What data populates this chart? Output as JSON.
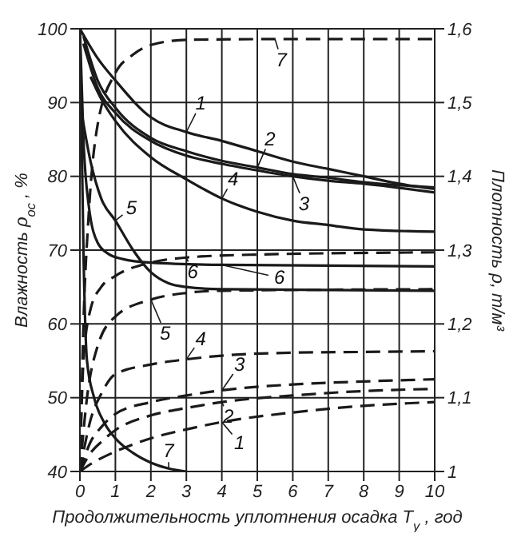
{
  "chart_data": {
    "type": "line",
    "xlabel": "Продолжительность уплотнения осадка T$_{у}$, год",
    "ylabel": "Влажность ρ$_{ос}$, %",
    "y2label": "Плотность ρ, т/м³",
    "xlim": [
      0,
      10
    ],
    "xticks": [
      0,
      1,
      2,
      3,
      4,
      5,
      6,
      7,
      8,
      9,
      10
    ],
    "ylim": [
      40,
      100
    ],
    "yticks": [
      40,
      50,
      60,
      70,
      80,
      90,
      100
    ],
    "y2lim": [
      1.0,
      1.6
    ],
    "y2ticks": [
      {
        "value": 1.0,
        "label": "1"
      },
      {
        "value": 1.1,
        "label": "1,1"
      },
      {
        "value": 1.2,
        "label": "1,2"
      },
      {
        "value": 1.3,
        "label": "1,3"
      },
      {
        "value": 1.4,
        "label": "1,4"
      },
      {
        "value": 1.5,
        "label": "1,5"
      },
      {
        "value": 1.6,
        "label": "1,6"
      }
    ],
    "grid": true,
    "marker": "none",
    "series": [
      {
        "color": "#1a1a1a",
        "line_style": "solid",
        "x": [
          0,
          0.5,
          1,
          2,
          3,
          4,
          5,
          6,
          7,
          8,
          9,
          10
        ],
        "values": [
          100,
          96,
          93,
          88,
          86,
          84.8,
          83.4,
          82,
          81,
          80,
          79,
          78.3
        ]
      },
      {
        "color": "#1a1a1a",
        "line_style": "solid",
        "x": [
          0.1,
          0.5,
          1,
          2,
          3,
          4,
          5,
          6,
          7,
          8,
          10
        ],
        "values": [
          99,
          93,
          89.3,
          85.2,
          83.4,
          82.1,
          81.2,
          80.3,
          79.8,
          79.2,
          78.5
        ]
      },
      {
        "color": "#1a1a1a",
        "line_style": "solid",
        "x": [
          0.1,
          0.5,
          1,
          2,
          3,
          4,
          5,
          6,
          7,
          8,
          10
        ],
        "values": [
          98,
          92,
          88.6,
          84.8,
          82.8,
          81.7,
          80.8,
          80,
          79.4,
          79,
          77.8
        ]
      },
      {
        "color": "#1a1a1a",
        "line_style": "solid",
        "x": [
          0.3,
          0.6,
          1,
          2,
          3,
          4,
          5,
          6,
          7,
          8,
          10
        ],
        "values": [
          93.5,
          90.5,
          87.5,
          82.6,
          79.6,
          77,
          75.2,
          74,
          73.4,
          72.8,
          72.5
        ]
      },
      {
        "color": "#1a1a1a",
        "line_style": "solid",
        "x": [
          0,
          0.3,
          0.6,
          1,
          1.5,
          2,
          2.5,
          3,
          4,
          10
        ],
        "values": [
          90,
          82,
          77,
          74,
          70,
          67,
          65.5,
          65,
          64.7,
          64.5
        ]
      },
      {
        "color": "#1a1a1a",
        "line_style": "solid",
        "x": [
          0,
          0.1,
          0.25,
          0.5,
          0.8,
          1.2,
          2,
          4,
          10
        ],
        "values": [
          100,
          85,
          76,
          71,
          69.5,
          68.8,
          68.3,
          68,
          67.8
        ]
      },
      {
        "color": "#1a1a1a",
        "line_style": "solid",
        "x": [
          0,
          0.05,
          0.1,
          0.2,
          0.4,
          0.7,
          1,
          1.5,
          2,
          2.5,
          3
        ],
        "values": [
          100,
          85,
          70,
          55,
          50,
          46.5,
          44.5,
          42.5,
          41.2,
          40.4,
          40
        ]
      },
      {
        "color": "#1a1a1a",
        "line_style": "dashed",
        "axis": "y2",
        "x": [
          0,
          0.3,
          0.6,
          1,
          2,
          3,
          4,
          6,
          8,
          10
        ],
        "values": [
          1.0,
          1.01,
          1.018,
          1.027,
          1.045,
          1.057,
          1.067,
          1.08,
          1.089,
          1.094
        ]
      },
      {
        "color": "#1a1a1a",
        "line_style": "dashed",
        "axis": "y2",
        "x": [
          0,
          0.3,
          0.6,
          1,
          2,
          3,
          4,
          6,
          8,
          10
        ],
        "values": [
          1.0,
          1.025,
          1.04,
          1.056,
          1.076,
          1.086,
          1.094,
          1.103,
          1.109,
          1.112
        ]
      },
      {
        "color": "#1a1a1a",
        "line_style": "dashed",
        "axis": "y2",
        "x": [
          0,
          0.3,
          0.6,
          1,
          2,
          3,
          4,
          6,
          8,
          10
        ],
        "values": [
          1.0,
          1.04,
          1.06,
          1.078,
          1.094,
          1.103,
          1.11,
          1.118,
          1.122,
          1.125
        ]
      },
      {
        "color": "#1a1a1a",
        "line_style": "dashed",
        "axis": "y2",
        "x": [
          0,
          0.3,
          0.6,
          1,
          2,
          3,
          4,
          6,
          8,
          10
        ],
        "values": [
          1.0,
          1.07,
          1.105,
          1.132,
          1.145,
          1.152,
          1.157,
          1.161,
          1.162,
          1.163
        ]
      },
      {
        "color": "#1a1a1a",
        "line_style": "dashed",
        "axis": "y2",
        "x": [
          0,
          0.2,
          0.5,
          1,
          2,
          3,
          4,
          10
        ],
        "values": [
          1.0,
          1.1,
          1.17,
          1.21,
          1.233,
          1.242,
          1.245,
          1.247
        ]
      },
      {
        "color": "#1a1a1a",
        "line_style": "dashed",
        "axis": "y2",
        "x": [
          0,
          0.1,
          0.3,
          0.6,
          1,
          2,
          3,
          5,
          10
        ],
        "values": [
          1.0,
          1.15,
          1.22,
          1.25,
          1.265,
          1.283,
          1.29,
          1.294,
          1.297
        ]
      },
      {
        "color": "#1a1a1a",
        "line_style": "dashed",
        "axis": "y2",
        "x": [
          0,
          0.1,
          0.25,
          0.5,
          1,
          1.5,
          2,
          3,
          5.5,
          10
        ],
        "values": [
          1.0,
          1.2,
          1.35,
          1.47,
          1.54,
          1.565,
          1.578,
          1.585,
          1.586,
          1.586
        ]
      }
    ],
    "annotations": [
      "1",
      "2",
      "3",
      "4",
      "5",
      "6",
      "7",
      "1",
      "2",
      "3",
      "4",
      "5",
      "6",
      "7"
    ]
  }
}
